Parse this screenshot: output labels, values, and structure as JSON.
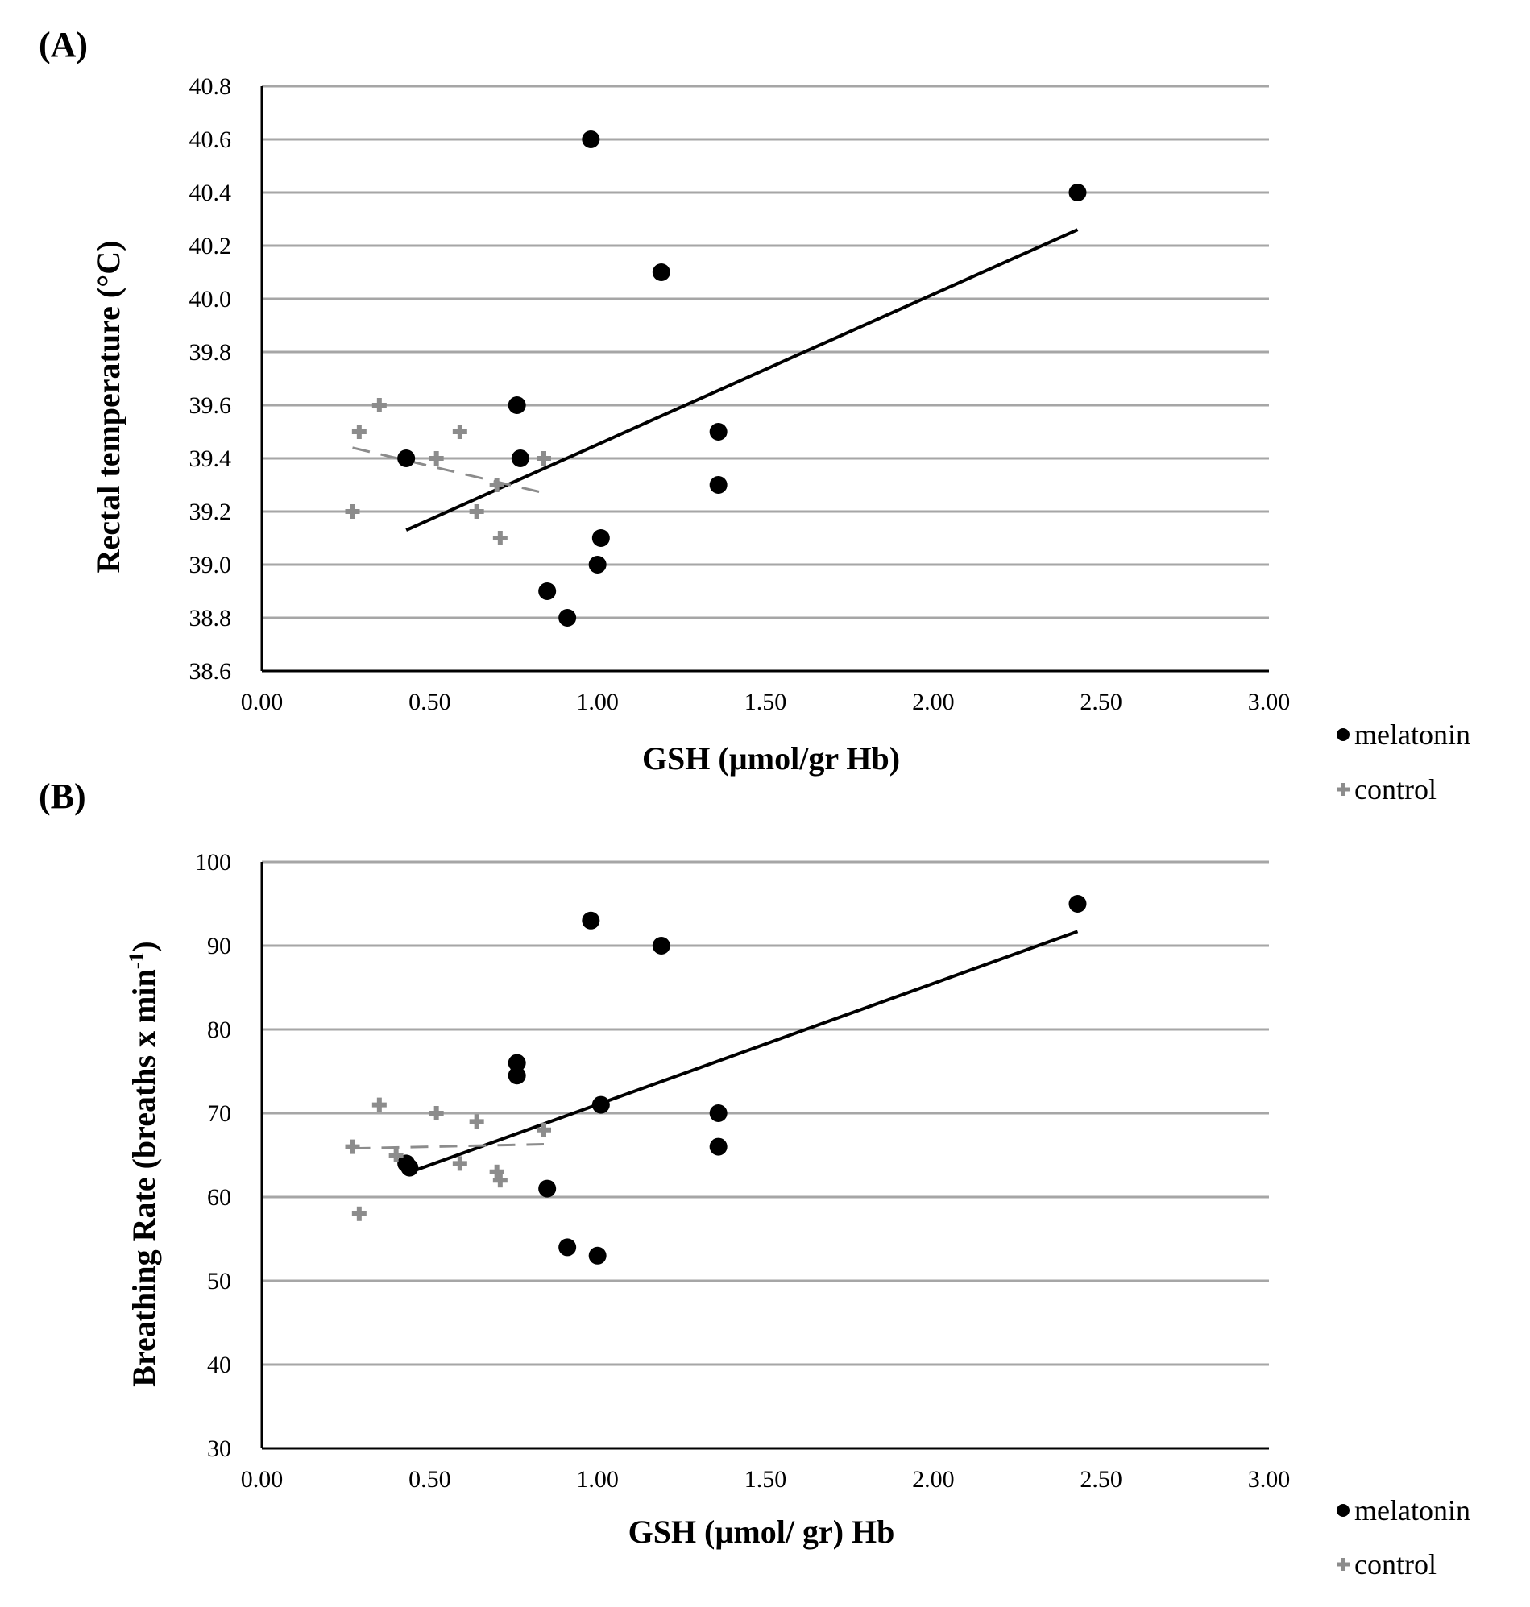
{
  "chart_data": [
    {
      "type": "scatter",
      "panel_label": "(A)",
      "xlabel": "GSH  (µmol/gr Hb)",
      "ylabel": "Rectal temperature (°C)",
      "xlim": [
        0,
        3
      ],
      "ylim": [
        38.6,
        40.8
      ],
      "x_ticks": [
        "0.00",
        "0.50",
        "1.00",
        "1.50",
        "2.00",
        "2.50",
        "3.00"
      ],
      "y_ticks": [
        "38.6",
        "38.8",
        "39.0",
        "39.2",
        "39.4",
        "39.6",
        "39.8",
        "40.0",
        "40.2",
        "40.4",
        "40.6",
        "40.8"
      ],
      "grid": "horizontal",
      "legend": {
        "position": "right-bottom",
        "items": [
          "melatonin",
          "control"
        ]
      },
      "series": [
        {
          "name": "melatonin",
          "color": "#000000",
          "marker": "circle",
          "points": [
            [
              0.43,
              39.4
            ],
            [
              0.76,
              39.6
            ],
            [
              0.77,
              39.4
            ],
            [
              0.98,
              40.6
            ],
            [
              1.19,
              40.1
            ],
            [
              1.36,
              39.5
            ],
            [
              1.36,
              39.3
            ],
            [
              1.01,
              39.1
            ],
            [
              1.0,
              39.0
            ],
            [
              0.85,
              38.9
            ],
            [
              0.91,
              38.8
            ],
            [
              2.43,
              40.4
            ]
          ],
          "trendline": {
            "x": [
              0.43,
              2.43
            ],
            "y": [
              39.13,
              40.26
            ],
            "style": "solid"
          }
        },
        {
          "name": "control",
          "color": "#8c8c8c",
          "marker": "plus",
          "points": [
            [
              0.35,
              39.6
            ],
            [
              0.29,
              39.5
            ],
            [
              0.59,
              39.5
            ],
            [
              0.52,
              39.4
            ],
            [
              0.84,
              39.4
            ],
            [
              0.7,
              39.3
            ],
            [
              0.27,
              39.2
            ],
            [
              0.64,
              39.2
            ],
            [
              0.71,
              39.1
            ]
          ],
          "trendline": {
            "x": [
              0.27,
              0.84
            ],
            "y": [
              39.44,
              39.27
            ],
            "style": "dashed"
          }
        }
      ]
    },
    {
      "type": "scatter",
      "panel_label": "(B)",
      "xlabel": "GSH  (µmol/ gr) Hb",
      "ylabel": "Breathing Rate (breaths x min",
      "ylabel_sup": "-1",
      "ylabel_end": ")",
      "xlim": [
        0,
        3
      ],
      "ylim": [
        30,
        100
      ],
      "x_ticks": [
        "0.00",
        "0.50",
        "1.00",
        "1.50",
        "2.00",
        "2.50",
        "3.00"
      ],
      "y_ticks": [
        "30",
        "40",
        "50",
        "60",
        "70",
        "80",
        "90",
        "100"
      ],
      "grid": "horizontal",
      "legend": {
        "position": "right-bottom",
        "items": [
          "melatonin",
          "control"
        ]
      },
      "series": [
        {
          "name": "melatonin",
          "color": "#000000",
          "marker": "circle",
          "points": [
            [
              0.43,
              64
            ],
            [
              0.44,
              63.5
            ],
            [
              0.76,
              76
            ],
            [
              0.76,
              74.5
            ],
            [
              0.98,
              93
            ],
            [
              1.19,
              90
            ],
            [
              1.01,
              71
            ],
            [
              1.36,
              70
            ],
            [
              1.36,
              66
            ],
            [
              0.85,
              61
            ],
            [
              0.91,
              54
            ],
            [
              1.0,
              53
            ],
            [
              2.43,
              95
            ]
          ],
          "trendline": {
            "x": [
              0.43,
              2.43
            ],
            "y": [
              62.8,
              91.7
            ],
            "style": "solid"
          }
        },
        {
          "name": "control",
          "color": "#8c8c8c",
          "marker": "plus",
          "points": [
            [
              0.35,
              71
            ],
            [
              0.52,
              70
            ],
            [
              0.64,
              69
            ],
            [
              0.84,
              68
            ],
            [
              0.27,
              66
            ],
            [
              0.4,
              65
            ],
            [
              0.59,
              64
            ],
            [
              0.7,
              63
            ],
            [
              0.71,
              62
            ],
            [
              0.29,
              58
            ]
          ],
          "trendline": {
            "x": [
              0.27,
              0.84
            ],
            "y": [
              65.8,
              66.3
            ],
            "style": "dashed"
          }
        }
      ]
    }
  ]
}
